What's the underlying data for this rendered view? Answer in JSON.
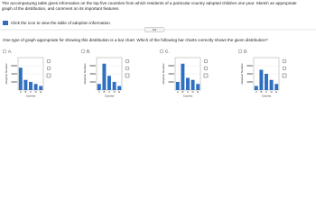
{
  "instructions": "The accompanying table gives information on the top five countries from which residents of a particular country adopted children one year. Sketch an appropriate graph of the distribution, and comment on its important features.",
  "link": "Click the icon to view the table of adoption information.",
  "question": "One type of graph appropriate for showing this distribution is a bar chart. Which of the following bar charts correctly shows the given distribution?",
  "options": [
    {
      "label": "A.",
      "chart": {
        "type": "bar",
        "ylabel": "Adoption Number",
        "xlabel": "Country",
        "categories": [
          "A",
          "B",
          "C",
          "D",
          "E"
        ],
        "values": [
          5500,
          2500,
          2000,
          1500,
          1000
        ],
        "ylim": [
          0,
          8000
        ],
        "yticks": [
          2000,
          4000,
          6000
        ],
        "color": "#2e6fc0"
      }
    },
    {
      "label": "B.",
      "chart": {
        "type": "bar",
        "ylabel": "Adoption Number",
        "xlabel": "Country",
        "categories": [
          "A",
          "B",
          "C",
          "D",
          "E"
        ],
        "values": [
          1500,
          6500,
          3500,
          2000,
          1000
        ],
        "ylim": [
          0,
          8000
        ],
        "yticks": [
          2000,
          4000,
          6000
        ],
        "color": "#2e6fc0"
      }
    },
    {
      "label": "C.",
      "chart": {
        "type": "bar",
        "ylabel": "Adoption Number",
        "xlabel": "Country",
        "categories": [
          "A",
          "B",
          "C",
          "D",
          "E"
        ],
        "values": [
          2000,
          6500,
          3000,
          2500,
          1500
        ],
        "ylim": [
          0,
          8000
        ],
        "yticks": [
          2000,
          4000,
          6000
        ],
        "color": "#2e6fc0"
      }
    },
    {
      "label": "D.",
      "chart": {
        "type": "bar",
        "ylabel": "Adoption Number",
        "xlabel": "Country",
        "categories": [
          "A",
          "B",
          "C",
          "D",
          "E"
        ],
        "values": [
          1000,
          5000,
          4000,
          2500,
          1500
        ],
        "ylim": [
          0,
          8000
        ],
        "yticks": [
          2000,
          4000,
          6000
        ],
        "color": "#2e6fc0"
      }
    }
  ]
}
